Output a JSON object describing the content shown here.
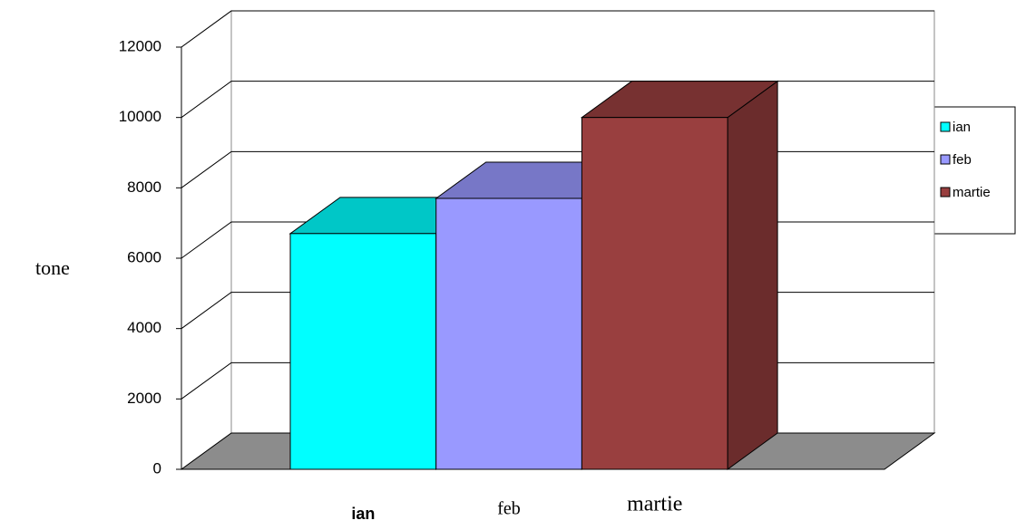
{
  "chart_data": {
    "type": "bar3d",
    "y_label": "tone",
    "categories": [
      "ian",
      "feb",
      "martie"
    ],
    "values": [
      6700,
      7700,
      10000
    ],
    "colors": [
      "#00ffff",
      "#9999ff",
      "#993f3f"
    ],
    "ylim": [
      0,
      12000
    ],
    "yticks": [
      0,
      2000,
      4000,
      6000,
      8000,
      10000,
      12000
    ],
    "grid": true
  }
}
